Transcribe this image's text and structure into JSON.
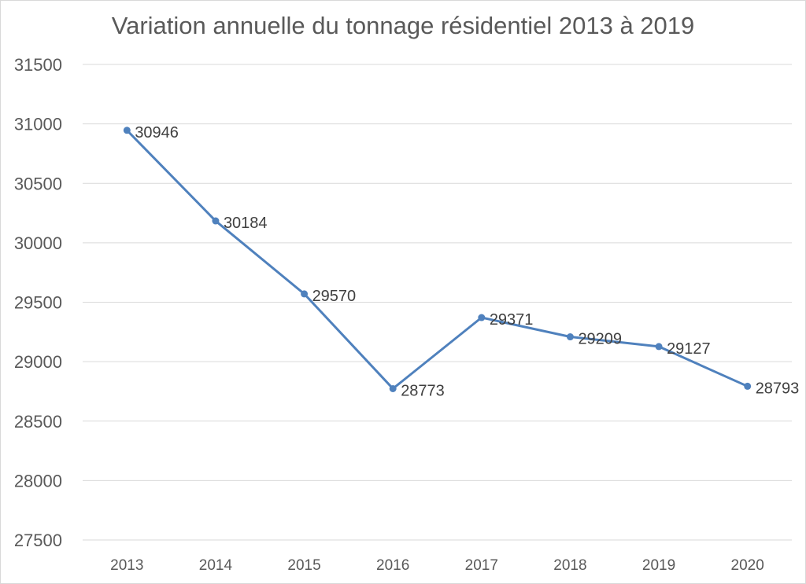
{
  "chart_data": {
    "type": "line",
    "title": "Variation annuelle du tonnage résidentiel 2013 à 2019",
    "xlabel": "",
    "ylabel": "",
    "categories": [
      "2013",
      "2014",
      "2015",
      "2016",
      "2017",
      "2018",
      "2019",
      "2020"
    ],
    "series": [
      {
        "values": [
          30946,
          30184,
          29570,
          28773,
          29371,
          29209,
          29127,
          28793
        ],
        "color": "#4f81bd"
      }
    ],
    "data_labels": [
      "30946",
      "30184",
      "29570",
      "28773",
      "29371",
      "29209",
      "29127",
      "28793"
    ],
    "ylim": [
      27500,
      31500
    ],
    "yticks": [
      27500,
      28000,
      28500,
      29000,
      29500,
      30000,
      30500,
      31000,
      31500
    ],
    "ytick_labels": [
      "27500",
      "28000",
      "28500",
      "29000",
      "29500",
      "30000",
      "30500",
      "31000",
      "31500"
    ],
    "grid": true,
    "legend": "none",
    "gridline_color": "#d9d9d9",
    "text_color": "#595959"
  }
}
